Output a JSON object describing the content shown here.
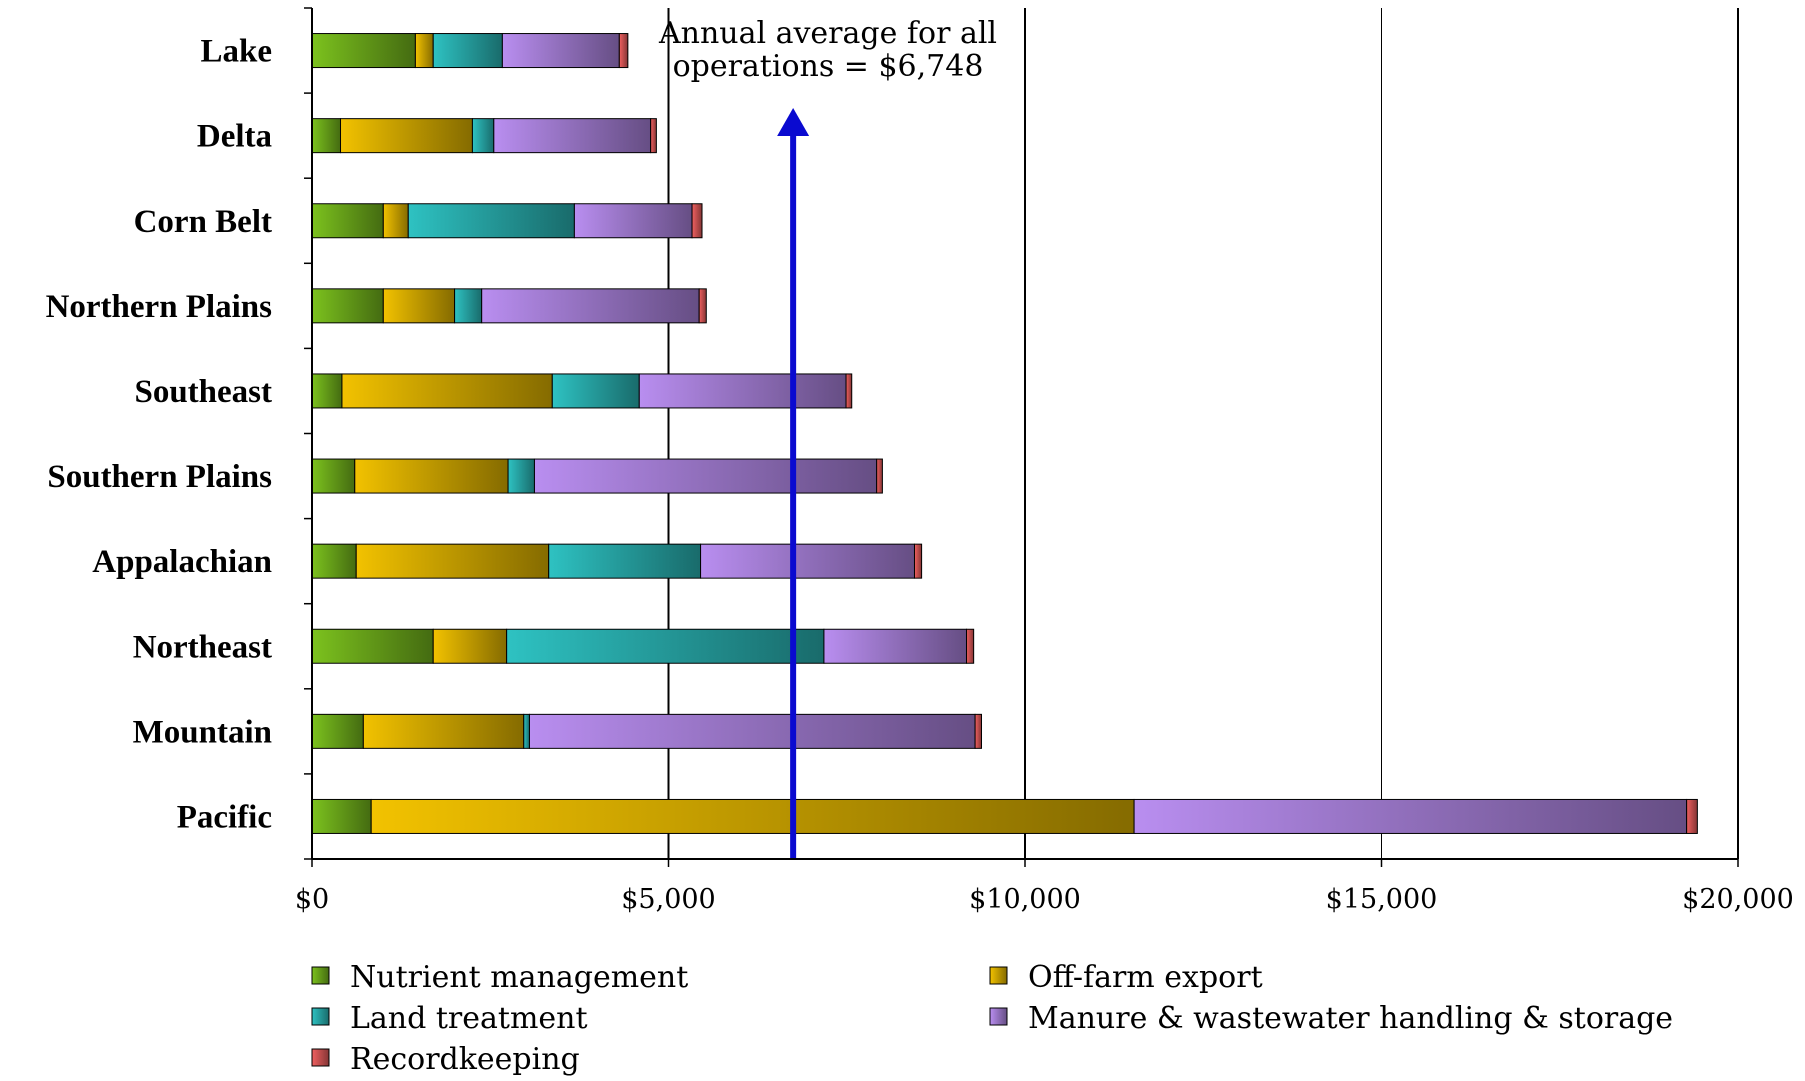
{
  "chart_data": {
    "type": "bar",
    "orientation": "horizontal",
    "stacked": true,
    "categories": [
      "Lake",
      "Delta",
      "Corn Belt",
      "Northern Plains",
      "Southeast",
      "Southern Plains",
      "Appalachian",
      "Northeast",
      "Mountain",
      "Pacific"
    ],
    "series": [
      {
        "name": "Nutrient management",
        "color": "#7cc21e",
        "values": [
          1450,
          400,
          1000,
          1000,
          420,
          600,
          620,
          1700,
          720,
          830
        ]
      },
      {
        "name": "Off-farm export",
        "color": "#f2c200",
        "values": [
          250,
          1850,
          350,
          1000,
          2950,
          2150,
          2700,
          1030,
          2250,
          10700
        ]
      },
      {
        "name": "Land treatment",
        "color": "#2ec2c2",
        "values": [
          970,
          300,
          2330,
          380,
          1220,
          370,
          2130,
          4450,
          80,
          0
        ]
      },
      {
        "name": "Manure & wastewater handling & storage",
        "color": "#b98ef0",
        "values": [
          1640,
          2200,
          1650,
          3050,
          2900,
          4800,
          3000,
          2000,
          6250,
          7750
        ]
      },
      {
        "name": "Recordkeeping",
        "color": "#f06060",
        "values": [
          120,
          80,
          140,
          100,
          80,
          80,
          100,
          100,
          90,
          150
        ]
      }
    ],
    "xlim": [
      0,
      20000
    ],
    "x_ticks": [
      "$0",
      "$5,000",
      "$10,000",
      "$15,000",
      "$20,000"
    ],
    "x_tick_values": [
      0,
      5000,
      10000,
      15000,
      20000
    ],
    "xlabel": "",
    "ylabel": "",
    "title": "",
    "grid": "vertical",
    "legend": {
      "position": "bottom",
      "columns": 2
    },
    "annotation": {
      "text_lines": [
        "Annual average for all",
        "operations = $6,748"
      ],
      "value": 6748,
      "arrow_color": "#0a0ad0"
    }
  }
}
